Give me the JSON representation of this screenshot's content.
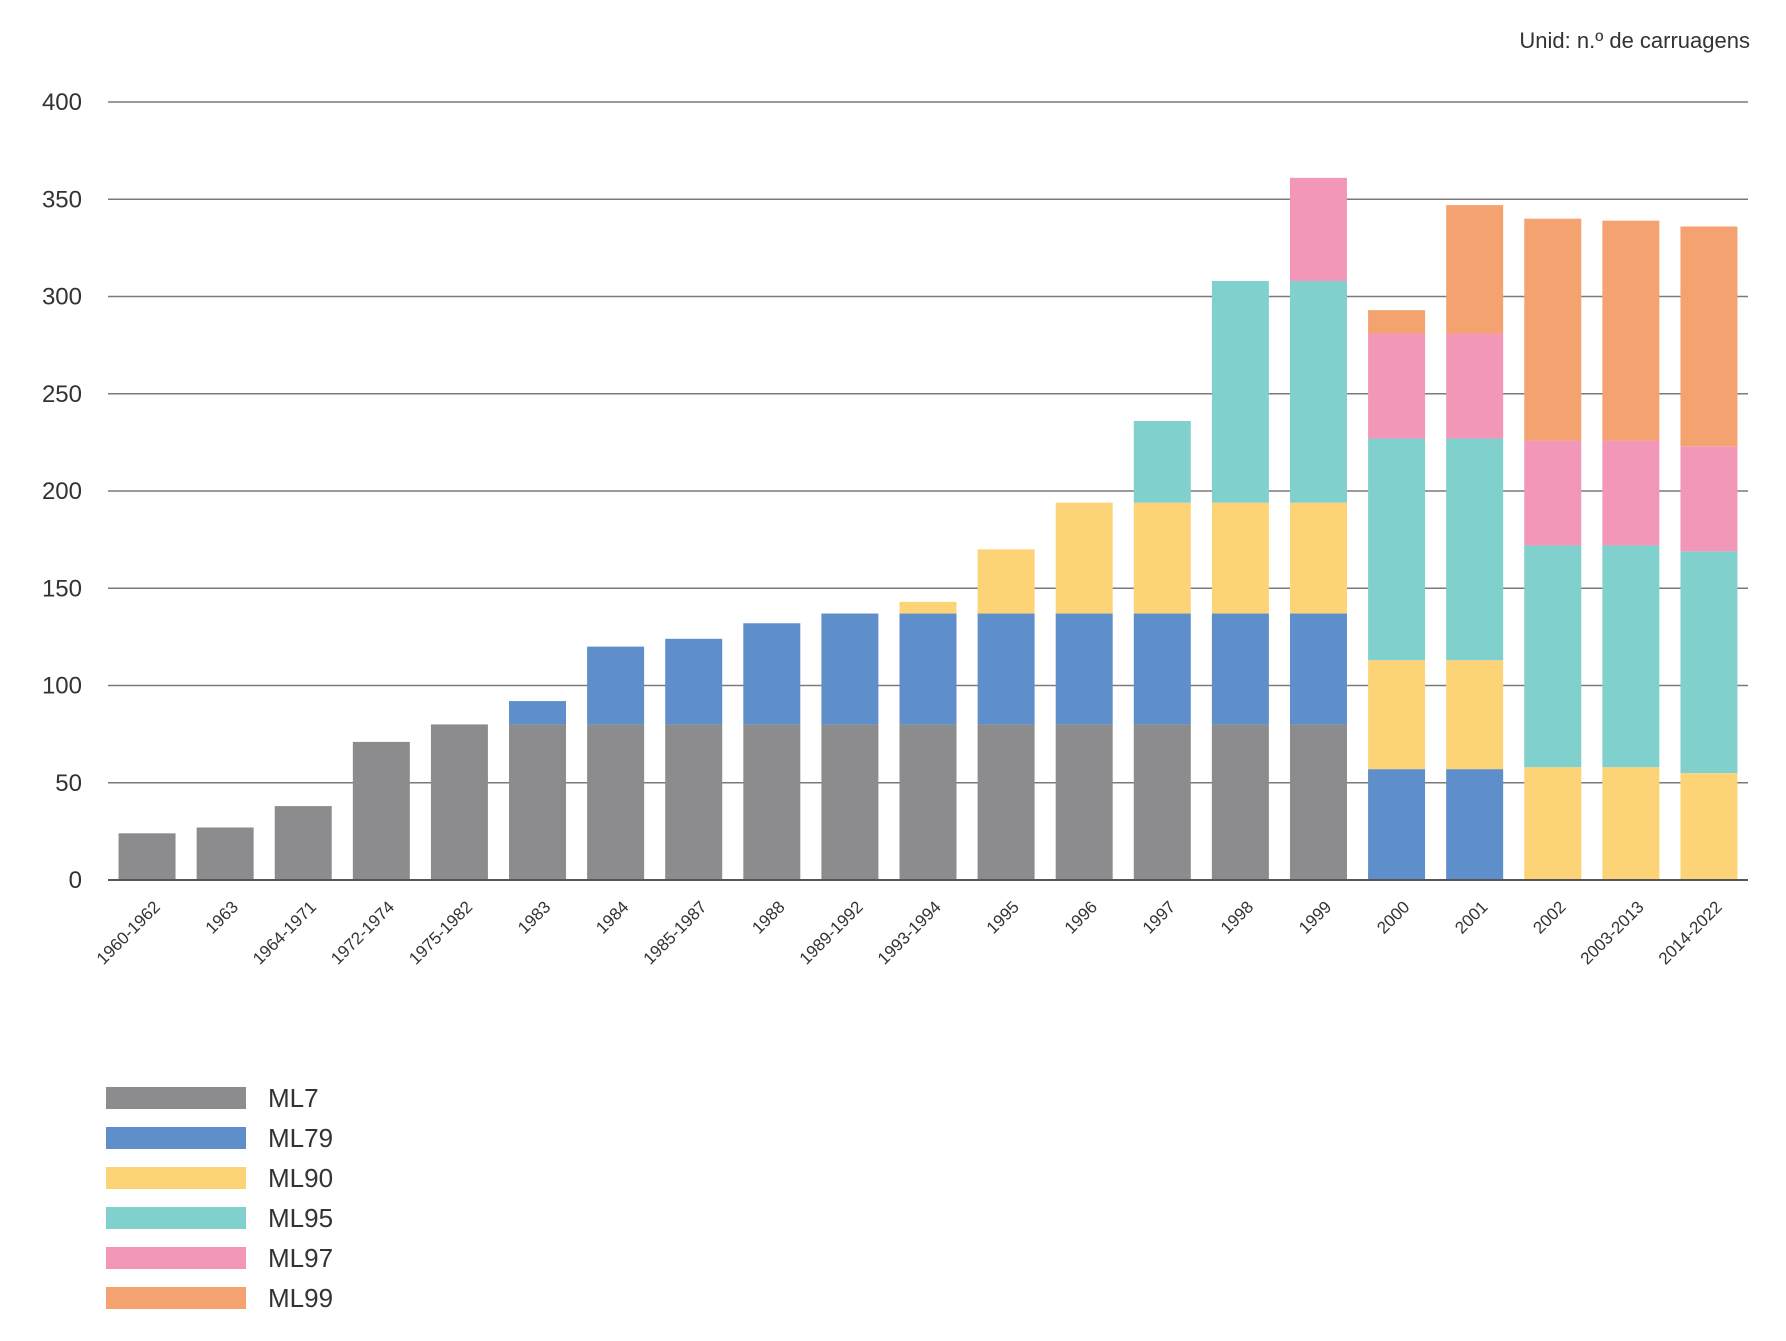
{
  "unit_note": "Unid: n.º de carruagens",
  "chart_data": {
    "type": "bar",
    "stacked": true,
    "title": "",
    "xlabel": "",
    "ylabel": "",
    "ylim": [
      0,
      400
    ],
    "yticks": [
      0,
      50,
      100,
      150,
      200,
      250,
      300,
      350,
      400
    ],
    "grid": true,
    "legend_position": "bottom-left",
    "categories": [
      "1960-1962",
      "1963",
      "1964-1971",
      "1972-1974",
      "1975-1982",
      "1983",
      "1984",
      "1985-1987",
      "1988",
      "1989-1992",
      "1993-1994",
      "1995",
      "1996",
      "1997",
      "1998",
      "1999",
      "2000",
      "2001",
      "2002",
      "2003-2013",
      "2014-2022"
    ],
    "series": [
      {
        "name": "ML7",
        "color": "#8c8c8e",
        "values": [
          24,
          27,
          38,
          71,
          80,
          80,
          80,
          80,
          80,
          80,
          80,
          80,
          80,
          80,
          80,
          80,
          0,
          0,
          0,
          0,
          0
        ]
      },
      {
        "name": "ML79",
        "color": "#5f8fca",
        "values": [
          0,
          0,
          0,
          0,
          0,
          12,
          40,
          44,
          52,
          57,
          57,
          57,
          57,
          57,
          57,
          57,
          57,
          57,
          0,
          0,
          0
        ]
      },
      {
        "name": "ML90",
        "color": "#fcd477",
        "values": [
          0,
          0,
          0,
          0,
          0,
          0,
          0,
          0,
          0,
          0,
          6,
          33,
          57,
          57,
          57,
          57,
          56,
          56,
          58,
          58,
          55
        ]
      },
      {
        "name": "ML95",
        "color": "#80d0ce",
        "values": [
          0,
          0,
          0,
          0,
          0,
          0,
          0,
          0,
          0,
          0,
          0,
          0,
          0,
          42,
          114,
          114,
          114,
          114,
          114,
          114,
          114
        ]
      },
      {
        "name": "ML97",
        "color": "#f397b9",
        "values": [
          0,
          0,
          0,
          0,
          0,
          0,
          0,
          0,
          0,
          0,
          0,
          0,
          0,
          0,
          0,
          53,
          54,
          54,
          54,
          54,
          54
        ]
      },
      {
        "name": "ML99",
        "color": "#f4a370",
        "values": [
          0,
          0,
          0,
          0,
          0,
          0,
          0,
          0,
          0,
          0,
          0,
          0,
          0,
          0,
          0,
          0,
          12,
          66,
          114,
          113,
          113
        ]
      }
    ]
  }
}
